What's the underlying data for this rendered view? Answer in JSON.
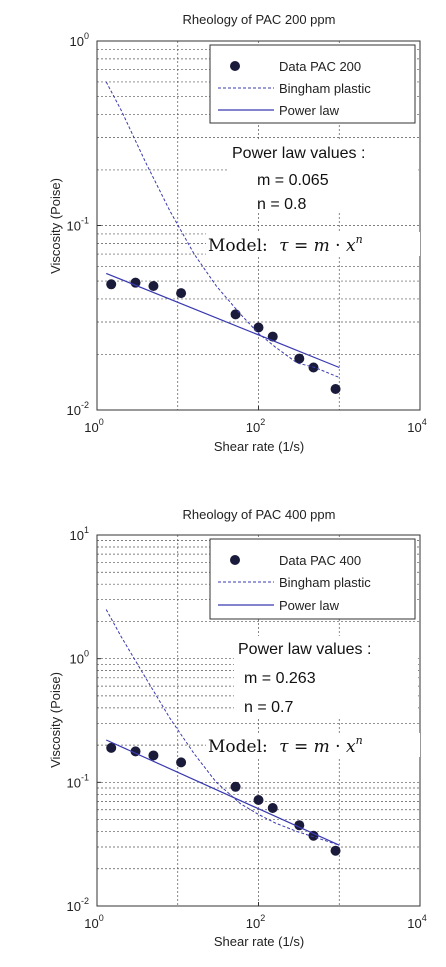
{
  "chart_data": [
    {
      "type": "line",
      "title": "Rheology of PAC 200 ppm",
      "xlabel": "Shear rate (1/s)",
      "ylabel": "Viscosity (Poise)",
      "x_scale": "log",
      "y_scale": "log",
      "xlim": [
        1,
        10000
      ],
      "ylim": [
        0.01,
        1
      ],
      "x_tick_labels": [
        {
          "base": "10",
          "exp": "0"
        },
        {
          "base": "10",
          "exp": "2"
        },
        {
          "base": "10",
          "exp": "4"
        }
      ],
      "y_tick_labels": [
        {
          "base": "10",
          "exp": "-2"
        },
        {
          "base": "10",
          "exp": "-1"
        },
        {
          "base": "10",
          "exp": "0"
        }
      ],
      "grid": "dotted",
      "legend_position": "top-right",
      "series": [
        {
          "name": "Data PAC 200",
          "style": "markers",
          "x": [
            1.5,
            3,
            5,
            11,
            52,
            100,
            150,
            320,
            480,
            900
          ],
          "y": [
            0.048,
            0.049,
            0.047,
            0.043,
            0.033,
            0.028,
            0.025,
            0.019,
            0.017,
            0.013
          ]
        },
        {
          "name": "Bingham plastic",
          "style": "dotted-line",
          "x": [
            1.3,
            2,
            4,
            8,
            16,
            30,
            60,
            100,
            160,
            300,
            500,
            1000
          ],
          "y": [
            0.6,
            0.42,
            0.22,
            0.12,
            0.07,
            0.047,
            0.033,
            0.026,
            0.022,
            0.018,
            0.017,
            0.015
          ]
        },
        {
          "name": "Power law",
          "style": "solid-line",
          "x": [
            1.3,
            1000
          ],
          "y": [
            0.055,
            0.017
          ]
        }
      ],
      "annotations": {
        "heading": "Power law values :",
        "m_line": "m = 0.065",
        "n_line": "n =  0.8",
        "model_label": "Model:"
      }
    },
    {
      "type": "line",
      "title": "Rheology of PAC 400 ppm",
      "xlabel": "Shear rate (1/s)",
      "ylabel": "Viscosity (Poise)",
      "x_scale": "log",
      "y_scale": "log",
      "xlim": [
        1,
        10000
      ],
      "ylim": [
        0.01,
        10
      ],
      "x_tick_labels": [
        {
          "base": "10",
          "exp": "0"
        },
        {
          "base": "10",
          "exp": "2"
        },
        {
          "base": "10",
          "exp": "4"
        }
      ],
      "y_tick_labels": [
        {
          "base": "10",
          "exp": "-2"
        },
        {
          "base": "10",
          "exp": "-1"
        },
        {
          "base": "10",
          "exp": "0"
        },
        {
          "base": "10",
          "exp": "1"
        }
      ],
      "grid": "dotted",
      "legend_position": "top-right",
      "series": [
        {
          "name": "Data PAC 400",
          "style": "markers",
          "x": [
            1.5,
            3,
            5,
            11,
            52,
            100,
            150,
            320,
            480,
            900
          ],
          "y": [
            0.19,
            0.178,
            0.165,
            0.145,
            0.092,
            0.072,
            0.062,
            0.045,
            0.037,
            0.028
          ]
        },
        {
          "name": "Bingham plastic",
          "style": "dotted-line",
          "x": [
            1.3,
            2,
            4,
            8,
            16,
            30,
            60,
            100,
            160,
            300,
            500,
            1000
          ],
          "y": [
            2.5,
            1.5,
            0.7,
            0.33,
            0.17,
            0.1,
            0.067,
            0.055,
            0.047,
            0.04,
            0.036,
            0.031
          ]
        },
        {
          "name": "Power law",
          "style": "solid-line",
          "x": [
            1.3,
            1000
          ],
          "y": [
            0.22,
            0.031
          ]
        }
      ],
      "annotations": {
        "heading": "Power law values :",
        "m_line": "m = 0.263",
        "n_line": "n =  0.7",
        "model_label": "Model:"
      }
    }
  ]
}
